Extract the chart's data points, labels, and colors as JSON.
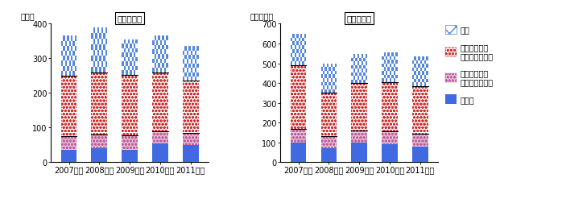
{
  "years": [
    "2007年末",
    "2008年末",
    "2009年末",
    "2010年末",
    "2011年末"
  ],
  "fund_count": {
    "title": "ファンド数",
    "ylabel": "（本）",
    "ylim": [
      0,
      400
    ],
    "yticks": [
      0,
      100,
      200,
      300,
      400
    ],
    "sono_ta": [
      35,
      40,
      35,
      55,
      50
    ],
    "negative": [
      40,
      40,
      42,
      35,
      35
    ],
    "positive": [
      175,
      180,
      175,
      170,
      150
    ],
    "ryoho": [
      115,
      130,
      103,
      105,
      100
    ]
  },
  "aum": {
    "title": "運用資産額",
    "ylabel": "（億ドル）",
    "ylim": [
      0,
      700
    ],
    "yticks": [
      0,
      100,
      200,
      300,
      400,
      500,
      600,
      700
    ],
    "sono_ta": [
      100,
      70,
      100,
      90,
      80
    ],
    "negative": [
      70,
      60,
      60,
      65,
      65
    ],
    "positive": [
      320,
      220,
      240,
      250,
      240
    ],
    "ryoho": [
      160,
      150,
      145,
      150,
      150
    ]
  },
  "legend_labels": [
    "両方",
    "ポジティブ・\nスクリーニング",
    "ネガティブ・\nスクリーニング",
    "その他"
  ],
  "color_sono_ta": "#4169E1",
  "color_negative_face": "#E8C8D8",
  "color_negative_dot": "#C060A0",
  "color_positive_face": "#FFFFFF",
  "color_positive_dot": "#CC3333",
  "color_ryoho_face": "#FFFFFF",
  "color_ryoho_check": "#5588DD",
  "figure_bg": "#ffffff",
  "font_size": 7.0,
  "bar_width": 0.52
}
